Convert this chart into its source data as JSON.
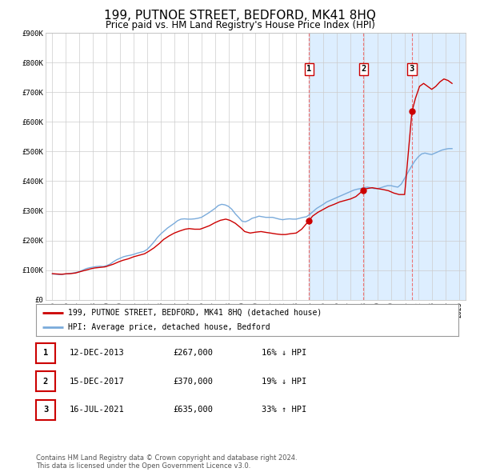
{
  "title": "199, PUTNOE STREET, BEDFORD, MK41 8HQ",
  "subtitle": "Price paid vs. HM Land Registry's House Price Index (HPI)",
  "title_fontsize": 11,
  "subtitle_fontsize": 8.5,
  "plot_bg_color": "#ffffff",
  "grid_color": "#cccccc",
  "ylabel": "",
  "ylim": [
    0,
    900000
  ],
  "yticks": [
    0,
    100000,
    200000,
    300000,
    400000,
    500000,
    600000,
    700000,
    800000,
    900000
  ],
  "ytick_labels": [
    "£0",
    "£100K",
    "£200K",
    "£300K",
    "£400K",
    "£500K",
    "£600K",
    "£700K",
    "£800K",
    "£900K"
  ],
  "xlim_start": 1994.5,
  "xlim_end": 2025.5,
  "xticks": [
    1995,
    1996,
    1997,
    1998,
    1999,
    2000,
    2001,
    2002,
    2003,
    2004,
    2005,
    2006,
    2007,
    2008,
    2009,
    2010,
    2011,
    2012,
    2013,
    2014,
    2015,
    2016,
    2017,
    2018,
    2019,
    2020,
    2021,
    2022,
    2023,
    2024,
    2025
  ],
  "red_line_color": "#cc0000",
  "blue_line_color": "#7aabdb",
  "marker_color": "#cc0000",
  "vline_color": "#ee6666",
  "highlight_color": "#ddeeff",
  "transaction_markers": [
    {
      "year": 2013.95,
      "value": 267000,
      "label": "1"
    },
    {
      "year": 2017.96,
      "value": 370000,
      "label": "2"
    },
    {
      "year": 2021.54,
      "value": 635000,
      "label": "3"
    }
  ],
  "vlines": [
    2013.95,
    2017.96,
    2021.54
  ],
  "legend_entries": [
    "199, PUTNOE STREET, BEDFORD, MK41 8HQ (detached house)",
    "HPI: Average price, detached house, Bedford"
  ],
  "table_data": [
    {
      "num": "1",
      "date": "12-DEC-2013",
      "price": "£267,000",
      "change": "16% ↓ HPI"
    },
    {
      "num": "2",
      "date": "15-DEC-2017",
      "price": "£370,000",
      "change": "19% ↓ HPI"
    },
    {
      "num": "3",
      "date": "16-JUL-2021",
      "price": "£635,000",
      "change": "33% ↑ HPI"
    }
  ],
  "footer_text": "Contains HM Land Registry data © Crown copyright and database right 2024.\nThis data is licensed under the Open Government Licence v3.0.",
  "hpi_data": {
    "years": [
      1995.0,
      1995.25,
      1995.5,
      1995.75,
      1996.0,
      1996.25,
      1996.5,
      1996.75,
      1997.0,
      1997.25,
      1997.5,
      1997.75,
      1998.0,
      1998.25,
      1998.5,
      1998.75,
      1999.0,
      1999.25,
      1999.5,
      1999.75,
      2000.0,
      2000.25,
      2000.5,
      2000.75,
      2001.0,
      2001.25,
      2001.5,
      2001.75,
      2002.0,
      2002.25,
      2002.5,
      2002.75,
      2003.0,
      2003.25,
      2003.5,
      2003.75,
      2004.0,
      2004.25,
      2004.5,
      2004.75,
      2005.0,
      2005.25,
      2005.5,
      2005.75,
      2006.0,
      2006.25,
      2006.5,
      2006.75,
      2007.0,
      2007.25,
      2007.5,
      2007.75,
      2008.0,
      2008.25,
      2008.5,
      2008.75,
      2009.0,
      2009.25,
      2009.5,
      2009.75,
      2010.0,
      2010.25,
      2010.5,
      2010.75,
      2011.0,
      2011.25,
      2011.5,
      2011.75,
      2012.0,
      2012.25,
      2012.5,
      2012.75,
      2013.0,
      2013.25,
      2013.5,
      2013.75,
      2014.0,
      2014.25,
      2014.5,
      2014.75,
      2015.0,
      2015.25,
      2015.5,
      2015.75,
      2016.0,
      2016.25,
      2016.5,
      2016.75,
      2017.0,
      2017.25,
      2017.5,
      2017.75,
      2018.0,
      2018.25,
      2018.5,
      2018.75,
      2019.0,
      2019.25,
      2019.5,
      2019.75,
      2020.0,
      2020.25,
      2020.5,
      2020.75,
      2021.0,
      2021.25,
      2021.5,
      2021.75,
      2022.0,
      2022.25,
      2022.5,
      2022.75,
      2023.0,
      2023.25,
      2023.5,
      2023.75,
      2024.0,
      2024.25,
      2024.5
    ],
    "values": [
      87000,
      86000,
      85000,
      85500,
      87000,
      88000,
      90000,
      92000,
      95000,
      100000,
      105000,
      108000,
      110000,
      112000,
      113000,
      112000,
      115000,
      120000,
      128000,
      135000,
      140000,
      145000,
      148000,
      150000,
      153000,
      157000,
      160000,
      163000,
      170000,
      182000,
      195000,
      210000,
      222000,
      232000,
      242000,
      250000,
      258000,
      267000,
      272000,
      273000,
      272000,
      272000,
      273000,
      275000,
      278000,
      285000,
      292000,
      300000,
      308000,
      318000,
      322000,
      320000,
      315000,
      305000,
      290000,
      278000,
      265000,
      263000,
      268000,
      275000,
      278000,
      282000,
      280000,
      278000,
      278000,
      278000,
      275000,
      272000,
      270000,
      272000,
      273000,
      272000,
      272000,
      275000,
      278000,
      280000,
      288000,
      298000,
      308000,
      315000,
      322000,
      330000,
      335000,
      340000,
      345000,
      350000,
      355000,
      360000,
      365000,
      370000,
      373000,
      375000,
      378000,
      380000,
      378000,
      375000,
      375000,
      378000,
      382000,
      385000,
      385000,
      382000,
      380000,
      390000,
      410000,
      430000,
      450000,
      468000,
      482000,
      492000,
      495000,
      492000,
      490000,
      495000,
      500000,
      505000,
      508000,
      510000,
      510000
    ]
  },
  "price_data": {
    "years": [
      1995.0,
      1995.3,
      1995.7,
      1996.0,
      1996.3,
      1996.7,
      1997.0,
      1997.4,
      1997.8,
      1998.1,
      1998.5,
      1998.9,
      1999.1,
      1999.5,
      1999.9,
      2000.2,
      2000.6,
      2001.0,
      2001.4,
      2001.8,
      2002.1,
      2002.5,
      2002.9,
      2003.2,
      2003.6,
      2004.0,
      2004.4,
      2004.8,
      2005.1,
      2005.5,
      2005.9,
      2006.2,
      2006.6,
      2007.0,
      2007.4,
      2007.8,
      2008.1,
      2008.5,
      2008.9,
      2009.2,
      2009.6,
      2010.0,
      2010.4,
      2010.8,
      2011.1,
      2011.5,
      2011.9,
      2012.2,
      2012.6,
      2013.0,
      2013.4,
      2013.95,
      2014.2,
      2014.6,
      2015.0,
      2015.4,
      2015.8,
      2016.2,
      2016.6,
      2017.0,
      2017.4,
      2017.96,
      2018.2,
      2018.6,
      2019.0,
      2019.4,
      2019.8,
      2020.2,
      2020.6,
      2021.0,
      2021.54,
      2021.8,
      2022.1,
      2022.4,
      2022.7,
      2023.0,
      2023.3,
      2023.6,
      2023.9,
      2024.2,
      2024.5
    ],
    "values": [
      88000,
      87000,
      86000,
      87500,
      88000,
      90000,
      94000,
      99000,
      104000,
      107000,
      109000,
      111000,
      114000,
      120000,
      128000,
      133000,
      138000,
      145000,
      150000,
      155000,
      163000,
      175000,
      190000,
      203000,
      215000,
      225000,
      232000,
      238000,
      240000,
      238000,
      238000,
      243000,
      250000,
      260000,
      268000,
      272000,
      268000,
      258000,
      243000,
      230000,
      225000,
      228000,
      230000,
      227000,
      225000,
      222000,
      220000,
      220000,
      223000,
      225000,
      238000,
      267000,
      282000,
      295000,
      305000,
      315000,
      322000,
      330000,
      335000,
      340000,
      348000,
      370000,
      375000,
      378000,
      375000,
      372000,
      368000,
      360000,
      355000,
      355000,
      635000,
      680000,
      720000,
      730000,
      720000,
      710000,
      720000,
      735000,
      745000,
      740000,
      730000
    ]
  }
}
